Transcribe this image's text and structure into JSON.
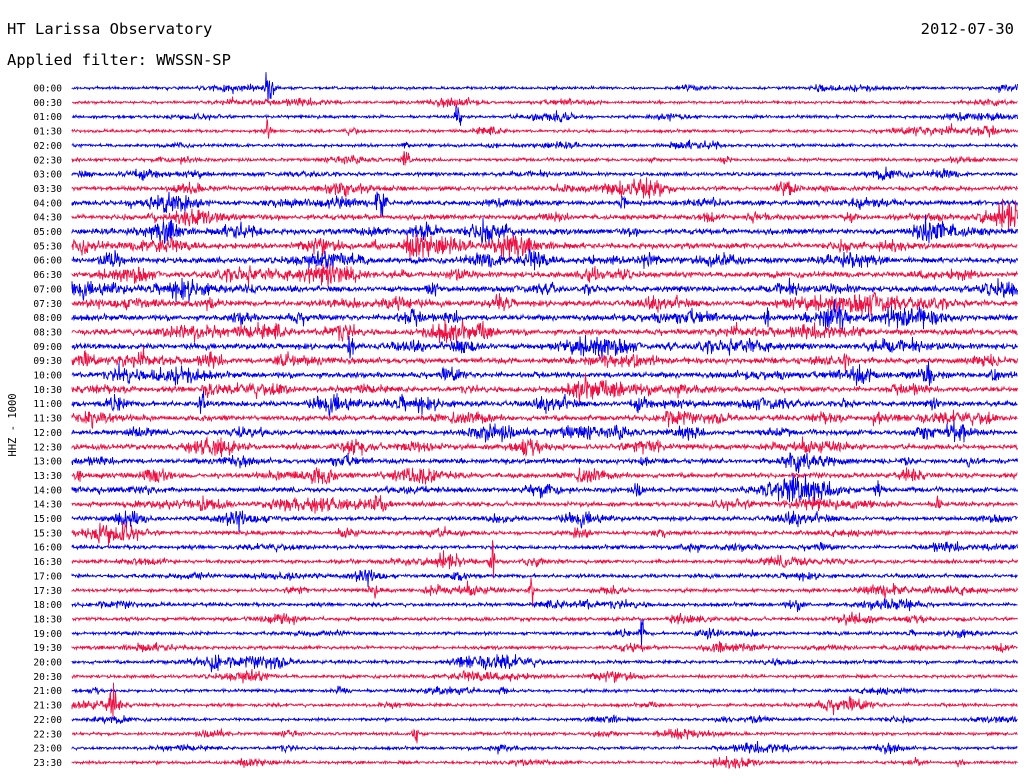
{
  "header": {
    "station": "HT Larissa Observatory",
    "date": "2012-07-30",
    "filter": "Applied filter: WWSSN-SP"
  },
  "axis": {
    "ylabel": "HHZ - 1000"
  },
  "chart_data": {
    "type": "line",
    "title": "HT Larissa Observatory",
    "date": "2012-07-30",
    "filter": "WWSSN-SP",
    "ylabel": "HHZ - 1000",
    "colors": [
      "#0000ee",
      "#ee1144"
    ],
    "row_labels": [
      "00:00",
      "00:30",
      "01:00",
      "01:30",
      "02:00",
      "02:30",
      "03:00",
      "03:30",
      "04:00",
      "04:30",
      "05:00",
      "05:30",
      "06:00",
      "06:30",
      "07:00",
      "07:30",
      "08:00",
      "08:30",
      "09:00",
      "09:30",
      "10:00",
      "10:30",
      "11:00",
      "11:30",
      "12:00",
      "12:30",
      "13:00",
      "13:30",
      "14:00",
      "14:30",
      "15:00",
      "15:30",
      "16:00",
      "16:30",
      "17:00",
      "17:30",
      "18:00",
      "18:30",
      "19:00",
      "19:30",
      "20:00",
      "20:30",
      "21:00",
      "21:30",
      "22:00",
      "22:30",
      "23:00",
      "23:30"
    ],
    "activity_level": [
      0.3,
      0.3,
      0.35,
      0.35,
      0.4,
      0.4,
      0.5,
      0.7,
      0.8,
      0.9,
      1.0,
      1.0,
      1.0,
      1.0,
      1.0,
      1.0,
      1.0,
      1.0,
      1.0,
      1.0,
      1.0,
      0.95,
      0.95,
      0.9,
      0.85,
      0.85,
      0.8,
      0.8,
      0.75,
      0.7,
      0.65,
      0.6,
      0.55,
      0.55,
      0.55,
      0.5,
      0.5,
      0.5,
      0.45,
      0.45,
      0.45,
      0.4,
      0.4,
      0.4,
      0.35,
      0.35,
      0.35,
      0.35
    ]
  }
}
